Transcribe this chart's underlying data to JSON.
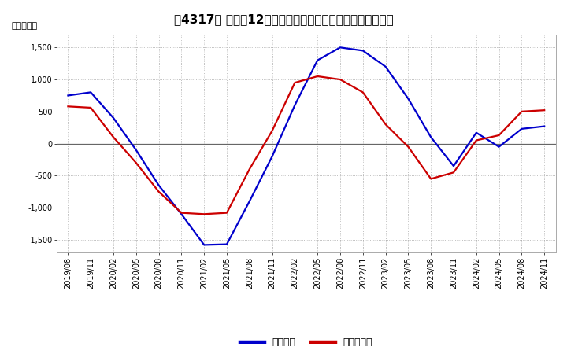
{
  "title": "［4317］ 利益の12か月移動合計の対前年同期増減額の推移",
  "ylabel": "（百万円）",
  "background_color": "#ffffff",
  "grid_color": "#aaaaaa",
  "plot_bg_color": "#ffffff",
  "ylim": [
    -1700,
    1700
  ],
  "yticks": [
    -1500,
    -1000,
    -500,
    0,
    500,
    1000,
    1500
  ],
  "series_order": [
    "経常利益",
    "当期純利益"
  ],
  "series": {
    "経常利益": {
      "color": "#0000cc",
      "values": [
        750,
        800,
        400,
        -100,
        -650,
        -1100,
        -1580,
        -1570,
        -900,
        -200,
        600,
        1300,
        1500,
        1450,
        1200,
        700,
        100,
        -350,
        170,
        -50,
        230,
        270
      ]
    },
    "当期純利益": {
      "color": "#cc0000",
      "values": [
        580,
        560,
        100,
        -300,
        -750,
        -1080,
        -1100,
        -1080,
        -400,
        200,
        950,
        1050,
        1000,
        800,
        300,
        -50,
        -550,
        -450,
        50,
        130,
        500,
        520
      ]
    }
  },
  "xtick_labels": [
    "2019/08",
    "2019/11",
    "2020/02",
    "2020/05",
    "2020/08",
    "2020/11",
    "2021/02",
    "2021/05",
    "2021/08",
    "2021/11",
    "2022/02",
    "2022/05",
    "2022/08",
    "2022/11",
    "2023/02",
    "2023/05",
    "2023/08",
    "2023/11",
    "2024/02",
    "2024/05",
    "2024/08",
    "2024/11"
  ],
  "title_fontsize": 11,
  "label_fontsize": 8,
  "tick_fontsize": 7,
  "legend_fontsize": 9,
  "linewidth": 1.6
}
